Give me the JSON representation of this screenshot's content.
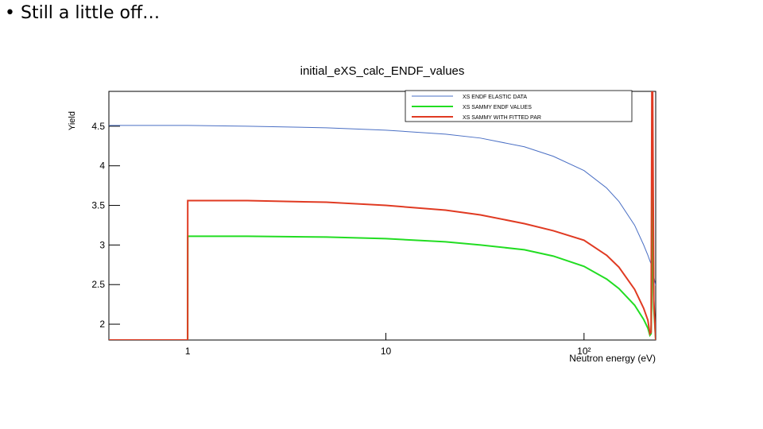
{
  "slide_text": "Still a little off…",
  "chart_data": {
    "type": "line",
    "title": "initial_eXS_calc_ENDF_values",
    "x_label": "Neutron energy (eV)",
    "y_label": "Yield",
    "x_scale": "log",
    "xlim": [
      0.4,
      230
    ],
    "ylim": [
      1.8,
      4.94
    ],
    "xticks": [
      1,
      10,
      {
        "value": 100,
        "label": "10²"
      }
    ],
    "yticks": [
      2,
      2.5,
      3,
      3.5,
      4,
      4.5
    ],
    "legend": "top-right",
    "x": [
      0.4,
      0.999,
      1,
      2,
      5,
      10,
      20,
      30,
      50,
      70,
      100,
      130,
      150,
      180,
      200,
      210,
      215,
      218,
      220,
      222,
      225,
      230
    ],
    "series": [
      {
        "name": "XS ENDF ELASTIC DATA",
        "color": "#4a6fc4",
        "values": [
          4.51,
          4.51,
          4.51,
          4.5,
          4.48,
          4.45,
          4.4,
          4.35,
          4.24,
          4.12,
          3.94,
          3.72,
          3.55,
          3.25,
          3.0,
          2.87,
          2.8,
          2.76,
          2.73,
          2.7,
          2.6,
          2.49
        ]
      },
      {
        "name": "XS SAMMY ENDF VALUES",
        "color": "#22dd22",
        "values": [
          1.8,
          1.8,
          3.11,
          3.11,
          3.1,
          3.08,
          3.04,
          3.0,
          2.94,
          2.86,
          2.73,
          2.57,
          2.45,
          2.24,
          2.06,
          1.95,
          1.86,
          1.88,
          2.4,
          3.8,
          2.2,
          1.8
        ]
      },
      {
        "name": "XS SAMMY WITH FITTED PAR",
        "color": "#e03a22",
        "values": [
          1.8,
          1.8,
          3.56,
          3.56,
          3.54,
          3.5,
          3.44,
          3.38,
          3.27,
          3.18,
          3.06,
          2.87,
          2.72,
          2.44,
          2.2,
          2.05,
          1.88,
          1.9,
          4.94,
          4.94,
          2.3,
          1.8
        ]
      }
    ]
  }
}
